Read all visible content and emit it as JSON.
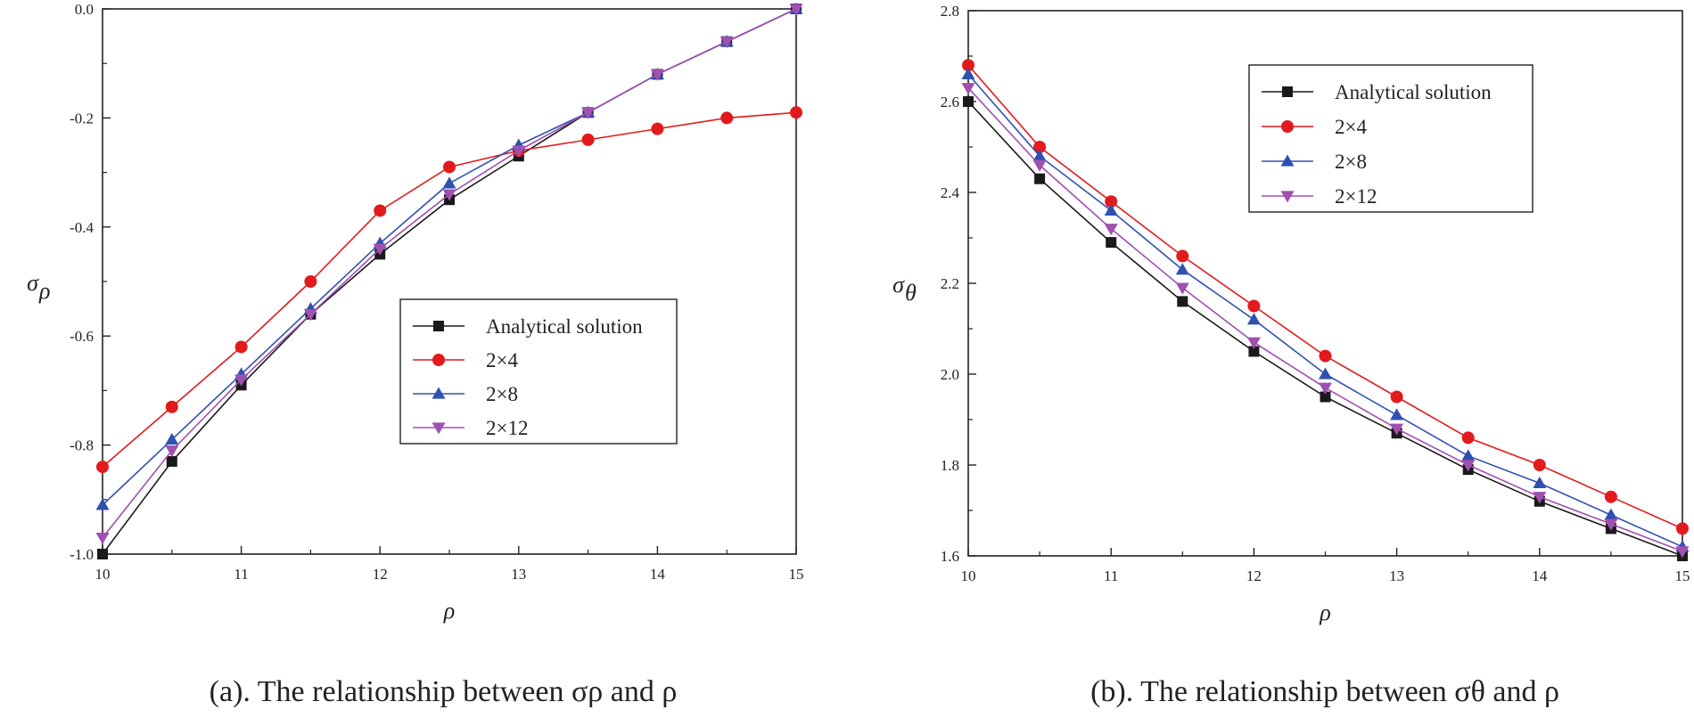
{
  "figure": {
    "captions": {
      "a": "(a). The relationship between σρ and ρ",
      "b": "(b). The relationship between σθ and ρ"
    }
  },
  "colors": {
    "analytical": "#1a1a1a",
    "mesh_2x4": "#e31a1c",
    "mesh_2x8": "#3050b0",
    "mesh_2x12": "#a050b0",
    "axis": "#222222"
  },
  "chart_data": [
    {
      "id": "a",
      "type": "line",
      "title": "",
      "xlabel": "ρ",
      "ylabel": "σ",
      "ylabel_sub": "ρ",
      "xlim": [
        10,
        15
      ],
      "ylim": [
        -1.0,
        0.0
      ],
      "xticks": [
        10,
        11,
        12,
        13,
        14,
        15
      ],
      "xtick_labels": [
        "10",
        "11",
        "12",
        "13",
        "14",
        "15"
      ],
      "yticks": [
        -1.0,
        -0.8,
        -0.6,
        -0.4,
        -0.2,
        0.0
      ],
      "ytick_labels": [
        "-1.0",
        "-0.8",
        "-0.6",
        "-0.4",
        "-0.2",
        "0.0"
      ],
      "grid": false,
      "legend_position": "center-right",
      "x": [
        10,
        10.5,
        11,
        11.5,
        12,
        12.5,
        13,
        13.5,
        14,
        14.5,
        15
      ],
      "series": [
        {
          "name": "Analytical solution",
          "marker": "square",
          "color": "#1a1a1a",
          "values": [
            -1.0,
            -0.83,
            -0.69,
            -0.56,
            -0.45,
            -0.35,
            -0.27,
            -0.19,
            -0.12,
            -0.06,
            0.0
          ]
        },
        {
          "name": "2×4",
          "marker": "circle",
          "color": "#e31a1c",
          "values": [
            -0.84,
            -0.73,
            -0.62,
            -0.5,
            -0.37,
            -0.29,
            -0.26,
            -0.24,
            -0.22,
            -0.2,
            -0.19
          ]
        },
        {
          "name": "2×8",
          "marker": "triangle-up",
          "color": "#3050b0",
          "values": [
            -0.91,
            -0.79,
            -0.67,
            -0.55,
            -0.43,
            -0.32,
            -0.25,
            -0.19,
            -0.12,
            -0.06,
            0.0
          ]
        },
        {
          "name": "2×12",
          "marker": "triangle-down",
          "color": "#a050b0",
          "values": [
            -0.97,
            -0.81,
            -0.68,
            -0.56,
            -0.44,
            -0.34,
            -0.26,
            -0.19,
            -0.12,
            -0.06,
            0.0
          ]
        }
      ]
    },
    {
      "id": "b",
      "type": "line",
      "title": "",
      "xlabel": "ρ",
      "ylabel": "σ",
      "ylabel_sub": "θ",
      "xlim": [
        10,
        15
      ],
      "ylim": [
        1.6,
        2.8
      ],
      "xticks": [
        10,
        11,
        12,
        13,
        14,
        15
      ],
      "xtick_labels": [
        "10",
        "11",
        "12",
        "13",
        "14",
        "15"
      ],
      "yticks": [
        1.6,
        1.8,
        2.0,
        2.2,
        2.4,
        2.6,
        2.8
      ],
      "ytick_labels": [
        "1.6",
        "1.8",
        "2.0",
        "2.2",
        "2.4",
        "2.6",
        "2.8"
      ],
      "grid": false,
      "legend_position": "top-right",
      "x": [
        10,
        10.5,
        11,
        11.5,
        12,
        12.5,
        13,
        13.5,
        14,
        14.5,
        15
      ],
      "series": [
        {
          "name": "Analytical solution",
          "marker": "square",
          "color": "#1a1a1a",
          "values": [
            2.6,
            2.43,
            2.29,
            2.16,
            2.05,
            1.95,
            1.87,
            1.79,
            1.72,
            1.66,
            1.6
          ]
        },
        {
          "name": "2×4",
          "marker": "circle",
          "color": "#e31a1c",
          "values": [
            2.68,
            2.5,
            2.38,
            2.26,
            2.15,
            2.04,
            1.95,
            1.86,
            1.8,
            1.73,
            1.66
          ]
        },
        {
          "name": "2×8",
          "marker": "triangle-up",
          "color": "#3050b0",
          "values": [
            2.66,
            2.48,
            2.36,
            2.23,
            2.12,
            2.0,
            1.91,
            1.82,
            1.76,
            1.69,
            1.62
          ]
        },
        {
          "name": "2×12",
          "marker": "triangle-down",
          "color": "#a050b0",
          "values": [
            2.63,
            2.46,
            2.32,
            2.19,
            2.07,
            1.97,
            1.88,
            1.8,
            1.73,
            1.67,
            1.61
          ]
        }
      ]
    }
  ]
}
